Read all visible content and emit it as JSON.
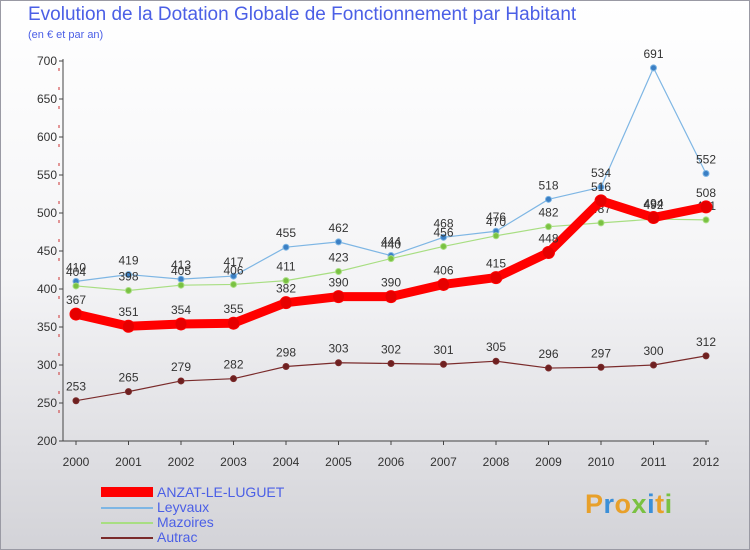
{
  "header": {
    "title": "Evolution de la Dotation Globale de Fonctionnement par Habitant",
    "subtitle": "(en € et par an)"
  },
  "chart_data": {
    "type": "line",
    "title": "Evolution de la Dotation Globale de Fonctionnement par Habitant",
    "subtitle": "(en € et par an)",
    "xlabel": "",
    "ylabel": "",
    "x": [
      "2000",
      "2001",
      "2002",
      "2003",
      "2004",
      "2005",
      "2006",
      "2007",
      "2008",
      "2009",
      "2010",
      "2011",
      "2012"
    ],
    "ylim": [
      200,
      700
    ],
    "yticks": [
      200,
      250,
      300,
      350,
      400,
      450,
      500,
      550,
      600,
      650,
      700
    ],
    "grid": false,
    "legend_position": "bottom-left",
    "series": [
      {
        "name": "Leyvaux",
        "color": "#7eb6e4",
        "marker": "#3b7fc4",
        "values": [
          410,
          419,
          413,
          417,
          455,
          462,
          444,
          468,
          476,
          518,
          534,
          691,
          552
        ],
        "labels": [
          "410",
          "419",
          "413",
          "417",
          "455",
          "462",
          "444",
          "468",
          "476",
          "518",
          "534",
          "691",
          "552"
        ]
      },
      {
        "name": "Mazoires",
        "color": "#a8de82",
        "marker": "#7ac142",
        "values": [
          404,
          398,
          405,
          406,
          411,
          423,
          440,
          456,
          470,
          482,
          487,
          492,
          491
        ],
        "labels": [
          "404",
          "398",
          "405",
          "406",
          "411",
          "423",
          "440",
          "456",
          "470",
          "482",
          "487",
          "492",
          "491"
        ]
      },
      {
        "name": "Autrac",
        "color": "#7a2b2b",
        "marker": "#6e2020",
        "values": [
          253,
          265,
          279,
          282,
          298,
          303,
          302,
          301,
          305,
          296,
          297,
          300,
          312
        ],
        "labels": [
          "253",
          "265",
          "279",
          "282",
          "298",
          "303",
          "302",
          "301",
          "305",
          "296",
          "297",
          "300",
          "312"
        ]
      },
      {
        "name": "ANZAT-LE-LUGUET",
        "color": "#ff0000",
        "marker": "#e60000",
        "values": [
          367,
          351,
          354,
          355,
          382,
          390,
          390,
          406,
          415,
          448,
          516,
          494,
          508
        ],
        "labels": [
          "367",
          "351",
          "354",
          "355",
          "382",
          "390",
          "390",
          "406",
          "415",
          "448",
          "516",
          "494",
          "508"
        ]
      }
    ]
  },
  "legend": {
    "items": [
      {
        "name": "ANZAT-LE-LUGUET",
        "color": "#ff0000"
      },
      {
        "name": "Leyvaux",
        "color": "#7eb6e4"
      },
      {
        "name": "Mazoires",
        "color": "#a8de82"
      },
      {
        "name": "Autrac",
        "color": "#7a2b2b"
      }
    ]
  },
  "logo": {
    "text": "Proxiti",
    "colors": [
      "#e8a02a",
      "#3b8fd8",
      "#e8a02a",
      "#7ac142",
      "#3b8fd8",
      "#e8a02a",
      "#7ac142"
    ]
  }
}
